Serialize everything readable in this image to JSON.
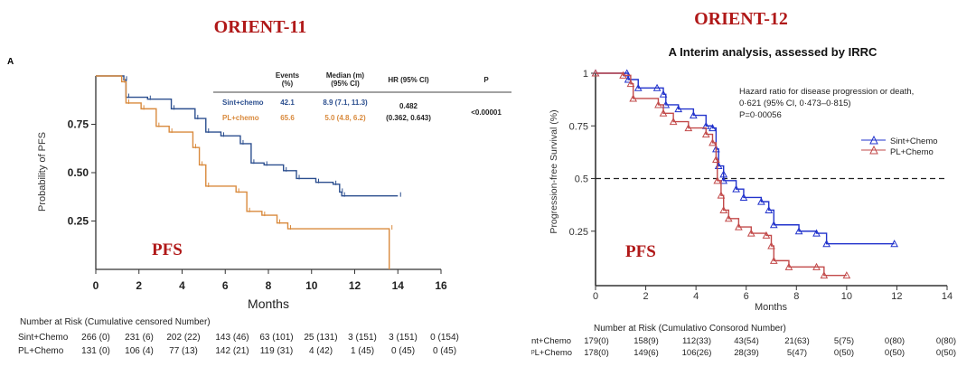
{
  "titles": {
    "left": "ORIENT-11",
    "right": "ORIENT-12",
    "pfs_left": "PFS",
    "pfs_right": "PFS"
  },
  "chart_data": [
    {
      "type": "line",
      "panel_label": "A",
      "xlabel": "Months",
      "ylabel": "Probability of PFS",
      "xlim": [
        0,
        16
      ],
      "ylim": [
        0,
        1
      ],
      "xticks": [
        0,
        2,
        4,
        6,
        8,
        10,
        12,
        14,
        16
      ],
      "yticks": [
        "0.25",
        "0.50",
        "0.75"
      ],
      "ytick_values": [
        0.25,
        0.5,
        0.75
      ],
      "series": [
        {
          "name": "Sint+chemo",
          "color": "#2c4f8f",
          "x": [
            0,
            1.3,
            1.4,
            2.4,
            3.5,
            4.6,
            5.1,
            5.8,
            6.7,
            7.2,
            7.8,
            8.7,
            9.3,
            10.2,
            11,
            11.3,
            11.4,
            14.0
          ],
          "y": [
            1,
            0.98,
            0.89,
            0.88,
            0.83,
            0.78,
            0.71,
            0.69,
            0.65,
            0.55,
            0.54,
            0.51,
            0.47,
            0.45,
            0.44,
            0.4,
            0.38,
            0.38
          ]
        },
        {
          "name": "PL+chemo",
          "color": "#d98a3d",
          "x": [
            0,
            1.2,
            1.4,
            2.1,
            2.8,
            3.4,
            4.5,
            4.8,
            5.1,
            6.5,
            7.0,
            7.7,
            8.4,
            8.9,
            13.6,
            13.6
          ],
          "y": [
            1,
            0.97,
            0.86,
            0.83,
            0.74,
            0.71,
            0.63,
            0.54,
            0.43,
            0.4,
            0.3,
            0.28,
            0.24,
            0.21,
            0.21,
            0
          ]
        }
      ],
      "stats_table": {
        "headers": [
          "Events\n(%)",
          "Median (m)\n(95% CI)",
          "HR (95% CI)",
          "P"
        ],
        "rows": [
          {
            "arm": "Sint+chemo",
            "events": "42.1",
            "median": "8.9 (7.1, 11.3)"
          },
          {
            "arm": "PL+chemo",
            "events": "65.6",
            "median": "5.0 (4.8, 6.2)"
          }
        ],
        "hr": "0.482",
        "hr_ci": "(0.362, 0.643)",
        "p": "<0.00001"
      },
      "risk_table": {
        "title": "Number  at Risk (Cumulative censored Number)",
        "rows": [
          {
            "label": "Sint+Chemo",
            "values": [
              "266 (0)",
              "231 (6)",
              "202 (22)",
              "143 (46)",
              "63 (101)",
              "25 (131)",
              "3 (151)",
              "3 (151)",
              "0 (154)"
            ]
          },
          {
            "label": "PL+Chemo",
            "values": [
              "131 (0)",
              "106 (4)",
              "77 (13)",
              "142 (21)",
              "119 (31)",
              "4 (42)",
              "1 (45)",
              "0 (45)",
              "0 (45)"
            ]
          }
        ]
      }
    },
    {
      "type": "line",
      "title": "A Interim analysis, assessed by IRRC",
      "xlabel": "Months",
      "ylabel": "Progression-free Survival (%)",
      "xlim": [
        0,
        14
      ],
      "ylim": [
        0,
        1
      ],
      "xticks": [
        0,
        2,
        4,
        6,
        8,
        10,
        12,
        14
      ],
      "yticks": [
        "0.25",
        "0.5",
        "0.75",
        "1"
      ],
      "ytick_values": [
        0.25,
        0.5,
        0.75,
        1
      ],
      "reference_line": 0.5,
      "annotation": [
        "Hazard ratio for disease progression or death,",
        "0·621 (95% CI, 0·473–0·815)",
        "P=0·00056"
      ],
      "legend_position": "right",
      "series": [
        {
          "name": "Sint+Chemo",
          "color": "#2233cc",
          "x": [
            0,
            1.25,
            1.3,
            1.7,
            2.45,
            2.7,
            2.8,
            3.3,
            3.9,
            4.4,
            4.66,
            4.8,
            4.9,
            5.1,
            5.1,
            5.6,
            5.9,
            6.6,
            6.9,
            7.1,
            8.1,
            8.8,
            9.2,
            11.9
          ],
          "y": [
            1,
            1,
            0.97,
            0.93,
            0.93,
            0.9,
            0.85,
            0.83,
            0.8,
            0.75,
            0.74,
            0.64,
            0.56,
            0.52,
            0.49,
            0.45,
            0.41,
            0.39,
            0.35,
            0.28,
            0.25,
            0.24,
            0.19,
            0.19
          ]
        },
        {
          "name": "PL+Chemo",
          "color": "#c24a4a",
          "x": [
            0,
            1.1,
            1.4,
            1.5,
            2.5,
            2.7,
            3.1,
            3.7,
            4.4,
            4.66,
            4.8,
            4.85,
            5.0,
            5.1,
            5.3,
            5.7,
            6.2,
            6.8,
            7.0,
            7.1,
            7.7,
            8.8,
            9.1,
            10.0
          ],
          "y": [
            1,
            0.99,
            0.95,
            0.88,
            0.85,
            0.81,
            0.77,
            0.74,
            0.71,
            0.67,
            0.59,
            0.49,
            0.42,
            0.35,
            0.31,
            0.27,
            0.24,
            0.23,
            0.18,
            0.11,
            0.08,
            0.08,
            0.04,
            0.04
          ]
        }
      ],
      "risk_table": {
        "title": "Number at Risk (Cumulativo Consorod Number)",
        "rows": [
          {
            "label": "nt+Chemo",
            "values": [
              "179(0)",
              "158(9)",
              "112(33)",
              "43(54)",
              "21(63)",
              "5(75)",
              "0(80)",
              "0(80)"
            ]
          },
          {
            "label": "ᵖL+Chemo",
            "values": [
              "178(0)",
              "149(6)",
              "106(26)",
              "28(39)",
              "5(47)",
              "0(50)",
              "0(50)",
              "0(50)"
            ]
          }
        ]
      }
    }
  ]
}
